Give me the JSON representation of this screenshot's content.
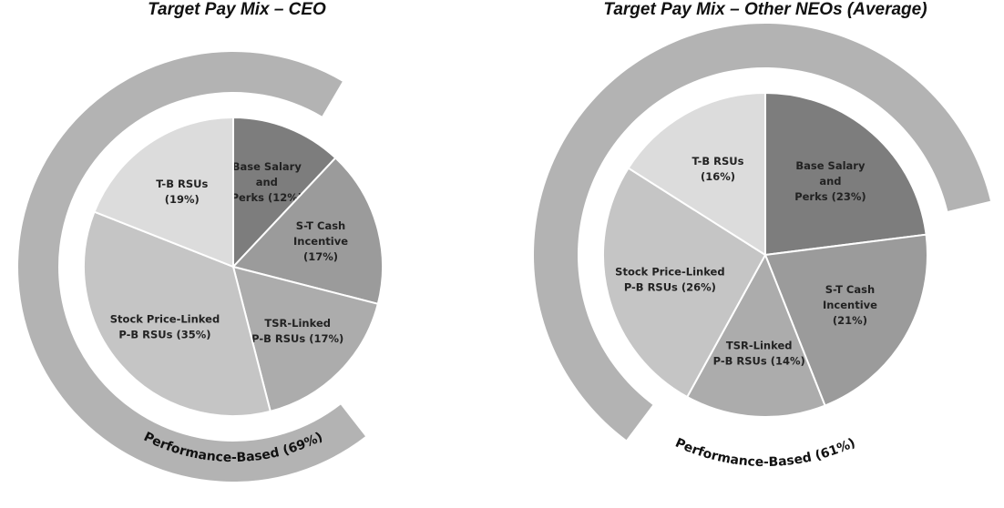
{
  "chart_data": [
    {
      "type": "pie",
      "title": "Target Pay Mix – CEO",
      "slices": [
        {
          "label_lines": [
            "Base Salary",
            "and",
            "Perks (12%)"
          ],
          "value": 12,
          "color": "#7d7d7d"
        },
        {
          "label_lines": [
            "S-T Cash",
            "Incentive",
            "(17%)"
          ],
          "value": 17,
          "color": "#9b9b9b"
        },
        {
          "label_lines": [
            "TSR-Linked",
            "P-B RSUs (17%)"
          ],
          "value": 17,
          "color": "#acacac"
        },
        {
          "label_lines": [
            "Stock Price-Linked",
            "P-B RSUs (35%)"
          ],
          "value": 35,
          "color": "#c5c5c5"
        },
        {
          "label_lines": [
            "T-B RSUs",
            "(19%)"
          ],
          "value": 19,
          "color": "#dcdcdc"
        }
      ],
      "outer_arc": {
        "label": "Performance-Based (69%)",
        "value": 69,
        "color": "#b3b3b3"
      }
    },
    {
      "type": "pie",
      "title": "Target Pay Mix – Other NEOs (Average)",
      "slices": [
        {
          "label_lines": [
            "Base Salary",
            "and",
            "Perks (23%)"
          ],
          "value": 23,
          "color": "#7d7d7d"
        },
        {
          "label_lines": [
            "S-T Cash",
            "Incentive",
            "(21%)"
          ],
          "value": 21,
          "color": "#9b9b9b"
        },
        {
          "label_lines": [
            "TSR-Linked",
            "P-B RSUs (14%)"
          ],
          "value": 14,
          "color": "#acacac"
        },
        {
          "label_lines": [
            "Stock Price-Linked",
            "P-B RSUs (26%)"
          ],
          "value": 26,
          "color": "#c5c5c5"
        },
        {
          "label_lines": [
            "T-B RSUs",
            "(16%)"
          ],
          "value": 16,
          "color": "#dcdcdc"
        }
      ],
      "outer_arc": {
        "label": "Performance-Based (61%)",
        "value": 61,
        "color": "#b3b3b3"
      }
    }
  ]
}
